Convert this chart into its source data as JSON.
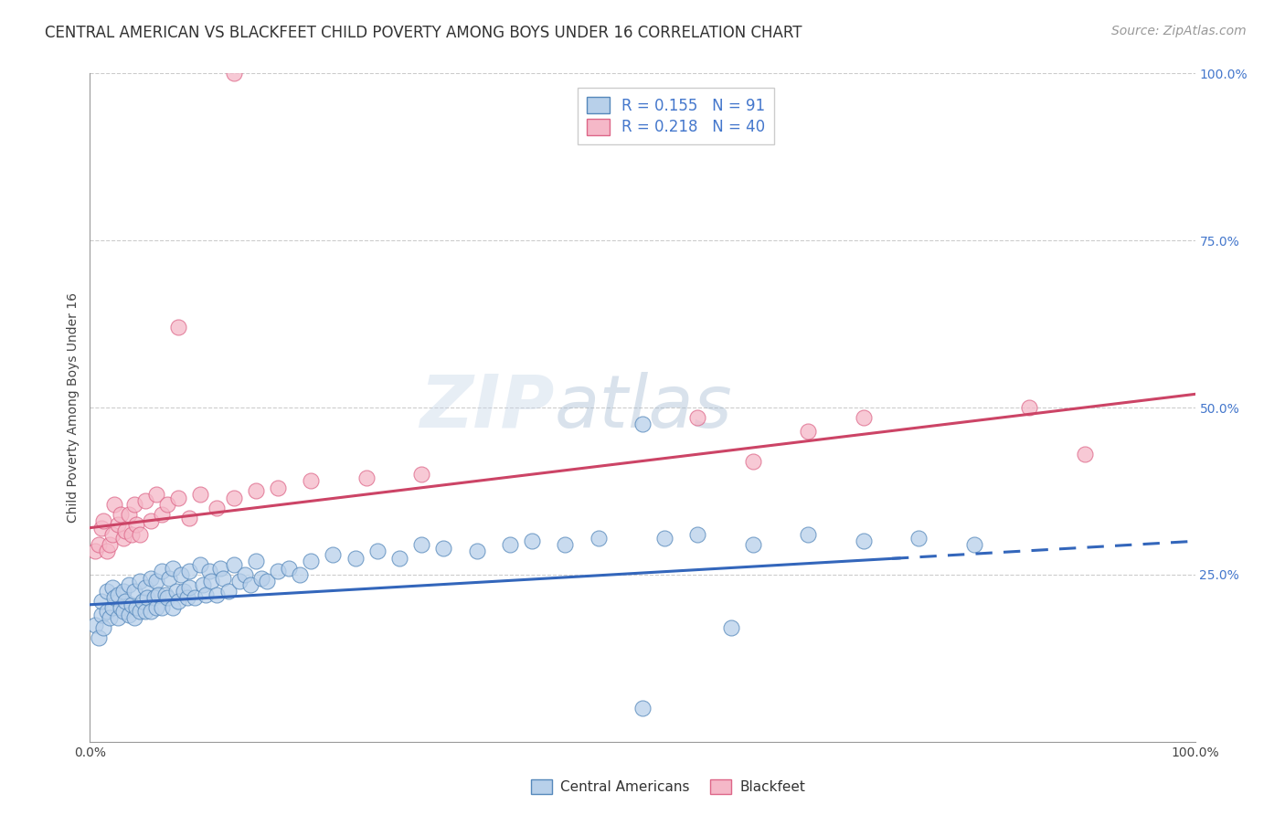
{
  "title": "CENTRAL AMERICAN VS BLACKFEET CHILD POVERTY AMONG BOYS UNDER 16 CORRELATION CHART",
  "source": "Source: ZipAtlas.com",
  "ylabel": "Child Poverty Among Boys Under 16",
  "xlim": [
    0,
    1
  ],
  "ylim": [
    0,
    1
  ],
  "xtick_labels": [
    "0.0%",
    "100.0%"
  ],
  "ytick_labels": [
    "100.0%",
    "75.0%",
    "50.0%",
    "25.0%"
  ],
  "ytick_positions": [
    1.0,
    0.75,
    0.5,
    0.25
  ],
  "blue_R": 0.155,
  "blue_N": 91,
  "pink_R": 0.218,
  "pink_N": 40,
  "blue_fill": "#b8d0ea",
  "pink_fill": "#f5b8c8",
  "blue_edge": "#5588bb",
  "pink_edge": "#dd6688",
  "trend_blue": "#3366bb",
  "trend_pink": "#cc4466",
  "legend_label_blue": "Central Americans",
  "legend_label_pink": "Blackfeet",
  "watermark_zip": "ZIP",
  "watermark_atlas": "atlas",
  "title_fontsize": 12,
  "source_fontsize": 10,
  "axis_label_fontsize": 10,
  "tick_fontsize": 10,
  "legend_fontsize": 12,
  "blue_trend_intercept": 0.205,
  "blue_trend_slope": 0.095,
  "pink_trend_intercept": 0.32,
  "pink_trend_slope": 0.2,
  "blue_scatter": {
    "x": [
      0.005,
      0.008,
      0.01,
      0.01,
      0.012,
      0.015,
      0.015,
      0.018,
      0.02,
      0.02,
      0.022,
      0.025,
      0.025,
      0.028,
      0.03,
      0.03,
      0.032,
      0.035,
      0.035,
      0.038,
      0.04,
      0.04,
      0.042,
      0.045,
      0.045,
      0.048,
      0.05,
      0.05,
      0.052,
      0.055,
      0.055,
      0.058,
      0.06,
      0.06,
      0.062,
      0.065,
      0.065,
      0.068,
      0.07,
      0.072,
      0.075,
      0.075,
      0.078,
      0.08,
      0.082,
      0.085,
      0.088,
      0.09,
      0.09,
      0.095,
      0.1,
      0.102,
      0.105,
      0.108,
      0.11,
      0.115,
      0.118,
      0.12,
      0.125,
      0.13,
      0.135,
      0.14,
      0.145,
      0.15,
      0.155,
      0.16,
      0.17,
      0.18,
      0.19,
      0.2,
      0.22,
      0.24,
      0.26,
      0.28,
      0.3,
      0.32,
      0.35,
      0.38,
      0.4,
      0.43,
      0.46,
      0.5,
      0.52,
      0.55,
      0.58,
      0.6,
      0.65,
      0.7,
      0.75,
      0.8,
      0.5
    ],
    "y": [
      0.175,
      0.155,
      0.19,
      0.21,
      0.17,
      0.195,
      0.225,
      0.185,
      0.2,
      0.23,
      0.215,
      0.185,
      0.22,
      0.2,
      0.195,
      0.225,
      0.21,
      0.19,
      0.235,
      0.205,
      0.185,
      0.225,
      0.2,
      0.195,
      0.24,
      0.21,
      0.195,
      0.23,
      0.215,
      0.195,
      0.245,
      0.215,
      0.2,
      0.24,
      0.22,
      0.2,
      0.255,
      0.22,
      0.215,
      0.245,
      0.2,
      0.26,
      0.225,
      0.21,
      0.25,
      0.225,
      0.215,
      0.255,
      0.23,
      0.215,
      0.265,
      0.235,
      0.22,
      0.255,
      0.24,
      0.22,
      0.26,
      0.245,
      0.225,
      0.265,
      0.24,
      0.25,
      0.235,
      0.27,
      0.245,
      0.24,
      0.255,
      0.26,
      0.25,
      0.27,
      0.28,
      0.275,
      0.285,
      0.275,
      0.295,
      0.29,
      0.285,
      0.295,
      0.3,
      0.295,
      0.305,
      0.475,
      0.305,
      0.31,
      0.17,
      0.295,
      0.31,
      0.3,
      0.305,
      0.295,
      0.05
    ]
  },
  "pink_scatter": {
    "x": [
      0.005,
      0.008,
      0.01,
      0.012,
      0.015,
      0.018,
      0.02,
      0.022,
      0.025,
      0.028,
      0.03,
      0.032,
      0.035,
      0.038,
      0.04,
      0.042,
      0.045,
      0.05,
      0.055,
      0.06,
      0.065,
      0.07,
      0.08,
      0.09,
      0.1,
      0.115,
      0.13,
      0.15,
      0.17,
      0.2,
      0.25,
      0.3,
      0.13,
      0.08,
      0.55,
      0.6,
      0.65,
      0.7,
      0.85,
      0.9
    ],
    "y": [
      0.285,
      0.295,
      0.32,
      0.33,
      0.285,
      0.295,
      0.31,
      0.355,
      0.325,
      0.34,
      0.305,
      0.315,
      0.34,
      0.31,
      0.355,
      0.325,
      0.31,
      0.36,
      0.33,
      0.37,
      0.34,
      0.355,
      0.365,
      0.335,
      0.37,
      0.35,
      0.365,
      0.375,
      0.38,
      0.39,
      0.395,
      0.4,
      1.0,
      0.62,
      0.485,
      0.42,
      0.465,
      0.485,
      0.5,
      0.43
    ]
  }
}
